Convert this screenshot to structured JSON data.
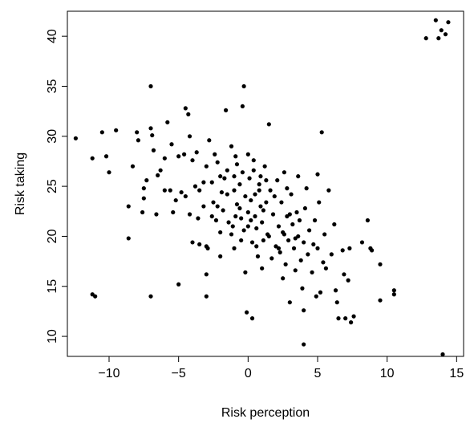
{
  "chart_data": {
    "type": "scatter",
    "title": "",
    "xlabel": "Risk perception",
    "ylabel": "Risk taking",
    "xlim": [
      -13,
      15.5
    ],
    "ylim": [
      8,
      42.5
    ],
    "xticks": [
      -10,
      -5,
      0,
      5,
      10,
      15
    ],
    "yticks": [
      10,
      15,
      20,
      25,
      30,
      35,
      40
    ],
    "xtick_labels": [
      "−10",
      "−5",
      "0",
      "5",
      "10",
      "15"
    ],
    "ytick_labels": [
      "10",
      "15",
      "20",
      "25",
      "30",
      "35",
      "40"
    ],
    "grid": false,
    "marker_color": "#000000",
    "points": [
      [
        -12.4,
        29.8
      ],
      [
        -11.2,
        27.8
      ],
      [
        -11.2,
        14.2
      ],
      [
        -11.0,
        14.0
      ],
      [
        -10.5,
        30.4
      ],
      [
        -10.2,
        28.0
      ],
      [
        -10.0,
        26.4
      ],
      [
        -9.5,
        30.6
      ],
      [
        -8.6,
        19.8
      ],
      [
        -8.6,
        23.0
      ],
      [
        -8.3,
        27.0
      ],
      [
        -8.0,
        30.4
      ],
      [
        -7.9,
        29.6
      ],
      [
        -7.6,
        22.4
      ],
      [
        -7.5,
        24.8
      ],
      [
        -7.5,
        23.8
      ],
      [
        -7.3,
        25.6
      ],
      [
        -7.0,
        30.8
      ],
      [
        -7.0,
        35.0
      ],
      [
        -7.0,
        14.0
      ],
      [
        -6.9,
        30.1
      ],
      [
        -6.8,
        28.6
      ],
      [
        -6.5,
        26.1
      ],
      [
        -6.3,
        26.6
      ],
      [
        -6.0,
        24.6
      ],
      [
        -6.0,
        27.8
      ],
      [
        -5.8,
        31.4
      ],
      [
        -5.5,
        29.2
      ],
      [
        -5.4,
        22.4
      ],
      [
        -5.2,
        23.6
      ],
      [
        -5.0,
        28.0
      ],
      [
        -5.0,
        15.2
      ],
      [
        -4.8,
        24.4
      ],
      [
        -4.6,
        28.2
      ],
      [
        -4.5,
        32.8
      ],
      [
        -4.5,
        24.0
      ],
      [
        -4.3,
        32.2
      ],
      [
        -4.2,
        30.0
      ],
      [
        -4.0,
        19.4
      ],
      [
        -4.0,
        27.6
      ],
      [
        -3.8,
        25.0
      ],
      [
        -3.7,
        28.4
      ],
      [
        -3.6,
        21.8
      ],
      [
        -3.5,
        24.6
      ],
      [
        -3.5,
        19.2
      ],
      [
        -3.2,
        25.4
      ],
      [
        -3.0,
        27.0
      ],
      [
        -3.0,
        19.0
      ],
      [
        -3.0,
        16.2
      ],
      [
        -3.0,
        14.0
      ],
      [
        -2.9,
        18.8
      ],
      [
        -2.8,
        29.6
      ],
      [
        -2.6,
        25.4
      ],
      [
        -2.5,
        23.4
      ],
      [
        -2.4,
        28.2
      ],
      [
        -2.3,
        21.6
      ],
      [
        -2.2,
        23.0
      ],
      [
        -2.0,
        26.0
      ],
      [
        -2.0,
        20.4
      ],
      [
        -2.0,
        18.0
      ],
      [
        -1.8,
        22.6
      ],
      [
        -1.7,
        25.8
      ],
      [
        -1.6,
        32.6
      ],
      [
        -1.5,
        24.2
      ],
      [
        -1.4,
        21.4
      ],
      [
        -1.2,
        29.0
      ],
      [
        -1.2,
        20.2
      ],
      [
        -1.0,
        26.0
      ],
      [
        -1.0,
        24.6
      ],
      [
        -1.0,
        18.8
      ],
      [
        -0.9,
        22.0
      ],
      [
        -0.8,
        27.2
      ],
      [
        -0.6,
        25.2
      ],
      [
        -0.5,
        21.8
      ],
      [
        -0.5,
        19.6
      ],
      [
        -0.4,
        33.0
      ],
      [
        -0.3,
        35.0
      ],
      [
        -0.2,
        24.0
      ],
      [
        -0.2,
        16.4
      ],
      [
        -0.1,
        12.4
      ],
      [
        0.0,
        22.4
      ],
      [
        0.0,
        21.0
      ],
      [
        0.0,
        28.2
      ],
      [
        0.1,
        25.8
      ],
      [
        0.2,
        23.6
      ],
      [
        0.3,
        19.4
      ],
      [
        0.3,
        11.8
      ],
      [
        0.4,
        26.6
      ],
      [
        0.5,
        24.2
      ],
      [
        0.5,
        22.0
      ],
      [
        0.6,
        20.8
      ],
      [
        0.7,
        18.0
      ],
      [
        0.8,
        25.2
      ],
      [
        0.9,
        23.0
      ],
      [
        1.0,
        21.4
      ],
      [
        1.0,
        16.8
      ],
      [
        1.1,
        19.6
      ],
      [
        1.2,
        27.0
      ],
      [
        1.3,
        23.4
      ],
      [
        1.4,
        20.2
      ],
      [
        1.5,
        31.2
      ],
      [
        1.6,
        24.6
      ],
      [
        1.7,
        17.8
      ],
      [
        1.8,
        22.2
      ],
      [
        2.0,
        19.0
      ],
      [
        2.1,
        25.6
      ],
      [
        2.2,
        21.0
      ],
      [
        2.3,
        18.4
      ],
      [
        2.4,
        23.4
      ],
      [
        2.5,
        20.4
      ],
      [
        2.5,
        15.8
      ],
      [
        2.6,
        26.4
      ],
      [
        2.7,
        17.2
      ],
      [
        2.8,
        22.0
      ],
      [
        2.9,
        19.6
      ],
      [
        3.0,
        13.4
      ],
      [
        3.1,
        24.2
      ],
      [
        3.2,
        21.2
      ],
      [
        3.3,
        18.8
      ],
      [
        3.4,
        16.6
      ],
      [
        3.5,
        22.4
      ],
      [
        3.6,
        20.0
      ],
      [
        3.6,
        26.0
      ],
      [
        3.8,
        17.6
      ],
      [
        3.9,
        14.8
      ],
      [
        4.0,
        19.4
      ],
      [
        4.0,
        12.6
      ],
      [
        4.0,
        9.2
      ],
      [
        4.1,
        22.8
      ],
      [
        4.2,
        24.8
      ],
      [
        4.3,
        18.2
      ],
      [
        4.4,
        20.6
      ],
      [
        4.6,
        16.4
      ],
      [
        4.8,
        21.6
      ],
      [
        4.9,
        14.0
      ],
      [
        5.0,
        26.2
      ],
      [
        5.0,
        18.8
      ],
      [
        5.1,
        23.4
      ],
      [
        5.2,
        14.4
      ],
      [
        5.3,
        30.4
      ],
      [
        5.5,
        20.2
      ],
      [
        5.6,
        16.8
      ],
      [
        5.8,
        24.6
      ],
      [
        6.0,
        18.2
      ],
      [
        6.2,
        21.2
      ],
      [
        6.3,
        14.6
      ],
      [
        6.5,
        11.8
      ],
      [
        6.8,
        18.6
      ],
      [
        6.9,
        16.2
      ],
      [
        7.0,
        11.8
      ],
      [
        7.2,
        15.6
      ],
      [
        7.3,
        18.8
      ],
      [
        7.4,
        11.4
      ],
      [
        7.6,
        12.0
      ],
      [
        8.2,
        19.4
      ],
      [
        8.6,
        21.6
      ],
      [
        8.8,
        18.8
      ],
      [
        8.9,
        18.6
      ],
      [
        9.5,
        13.6
      ],
      [
        9.5,
        17.2
      ],
      [
        10.5,
        14.6
      ],
      [
        10.5,
        14.2
      ],
      [
        12.8,
        39.8
      ],
      [
        13.5,
        41.6
      ],
      [
        13.7,
        39.8
      ],
      [
        13.9,
        40.6
      ],
      [
        14.0,
        8.2
      ],
      [
        14.2,
        40.2
      ],
      [
        14.4,
        41.4
      ],
      [
        -1.5,
        26.6
      ],
      [
        -0.8,
        23.2
      ],
      [
        -0.3,
        20.6
      ],
      [
        0.2,
        21.6
      ],
      [
        0.6,
        19.0
      ],
      [
        1.1,
        22.6
      ],
      [
        1.5,
        20.0
      ],
      [
        1.9,
        24.0
      ],
      [
        2.2,
        18.8
      ],
      [
        2.6,
        20.2
      ],
      [
        3.0,
        22.2
      ],
      [
        3.4,
        19.8
      ],
      [
        -2.6,
        22.0
      ],
      [
        -1.1,
        21.0
      ],
      [
        -0.6,
        22.8
      ],
      [
        0.8,
        24.6
      ],
      [
        1.3,
        25.6
      ],
      [
        -0.4,
        26.4
      ],
      [
        0.4,
        27.6
      ],
      [
        -1.9,
        24.4
      ],
      [
        -3.2,
        23.0
      ],
      [
        -4.2,
        22.2
      ],
      [
        -5.6,
        24.6
      ],
      [
        -6.6,
        22.2
      ],
      [
        -2.2,
        27.4
      ],
      [
        -0.9,
        28.0
      ],
      [
        0.9,
        26.0
      ],
      [
        2.8,
        24.8
      ],
      [
        3.7,
        21.6
      ],
      [
        4.7,
        19.2
      ],
      [
        5.4,
        17.4
      ],
      [
        6.4,
        13.4
      ]
    ]
  }
}
